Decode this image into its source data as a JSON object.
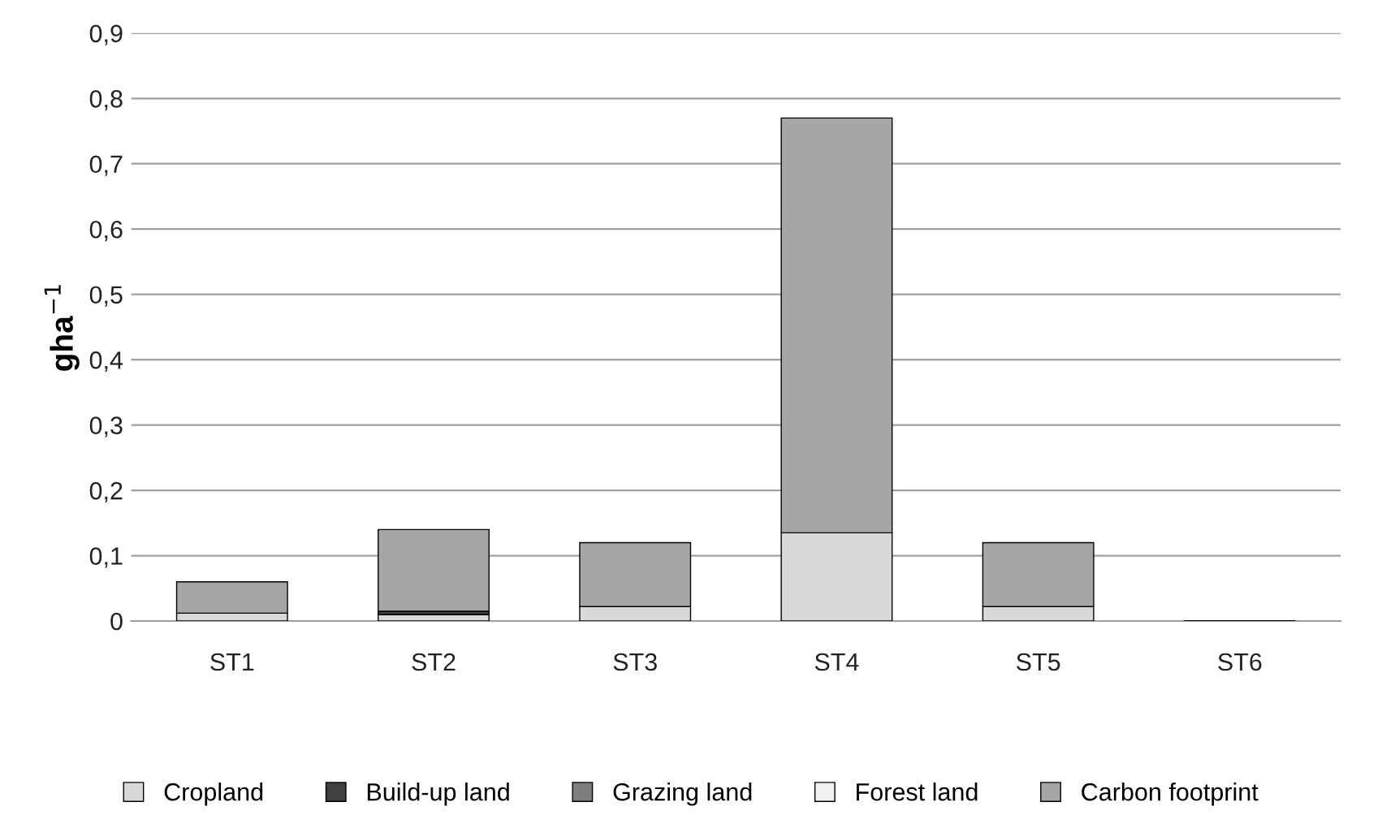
{
  "chart_data": {
    "type": "bar",
    "stacked": true,
    "ylabel": "gha$^{−1}$",
    "categories": [
      "ST1",
      "ST2",
      "ST3",
      "ST4",
      "ST5",
      "ST6"
    ],
    "series": [
      {
        "name": "Cropland",
        "color": "#d9d9d9",
        "values": [
          0.012,
          0.01,
          0.022,
          0.135,
          0.022,
          0
        ]
      },
      {
        "name": "Build-up land",
        "color": "#404040",
        "values": [
          0,
          0.005,
          0,
          0,
          0,
          0
        ]
      },
      {
        "name": "Grazing land",
        "color": "#7f7f7f",
        "values": [
          0,
          0,
          0,
          0,
          0,
          0
        ]
      },
      {
        "name": "Forest land",
        "color": "#f2f2f2",
        "values": [
          0,
          0,
          0,
          0,
          0,
          0
        ]
      },
      {
        "name": "Carbon footprint",
        "color": "#a6a6a6",
        "values": [
          0.048,
          0.125,
          0.098,
          0.635,
          0.098,
          0
        ]
      }
    ],
    "ylim": [
      0,
      0.9
    ],
    "yticks": [
      0,
      {
        "value": 0.1,
        "label": "0,1"
      },
      {
        "value": 0.2,
        "label": "0,2"
      },
      {
        "value": 0.3,
        "label": "0,3"
      },
      {
        "value": 0.4,
        "label": "0,4"
      },
      {
        "value": 0.5,
        "label": "0,5"
      },
      {
        "value": 0.6,
        "label": "0,6"
      },
      {
        "value": 0.7,
        "label": "0,7"
      },
      {
        "value": 0.8,
        "label": "0,8"
      },
      {
        "value": 0.9,
        "label": "0,9"
      }
    ],
    "grid": "y",
    "legend": "bottom"
  }
}
